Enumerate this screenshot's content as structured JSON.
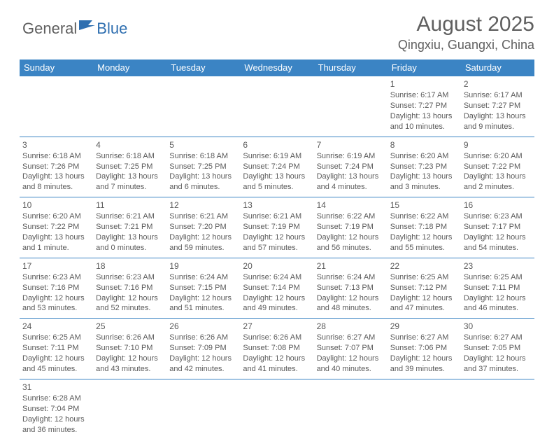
{
  "logo": {
    "text1": "General",
    "text2": "Blue"
  },
  "header": {
    "title": "August 2025",
    "location": "Qingxiu, Guangxi, China"
  },
  "colors": {
    "headerBg": "#3b84c4",
    "headerText": "#ffffff",
    "border": "#3b84c4",
    "text": "#5a5a5a"
  },
  "dayNames": [
    "Sunday",
    "Monday",
    "Tuesday",
    "Wednesday",
    "Thursday",
    "Friday",
    "Saturday"
  ],
  "weeks": [
    [
      null,
      null,
      null,
      null,
      null,
      {
        "n": "1",
        "sr": "Sunrise: 6:17 AM",
        "ss": "Sunset: 7:27 PM",
        "dl": "Daylight: 13 hours and 10 minutes."
      },
      {
        "n": "2",
        "sr": "Sunrise: 6:17 AM",
        "ss": "Sunset: 7:27 PM",
        "dl": "Daylight: 13 hours and 9 minutes."
      }
    ],
    [
      {
        "n": "3",
        "sr": "Sunrise: 6:18 AM",
        "ss": "Sunset: 7:26 PM",
        "dl": "Daylight: 13 hours and 8 minutes."
      },
      {
        "n": "4",
        "sr": "Sunrise: 6:18 AM",
        "ss": "Sunset: 7:25 PM",
        "dl": "Daylight: 13 hours and 7 minutes."
      },
      {
        "n": "5",
        "sr": "Sunrise: 6:18 AM",
        "ss": "Sunset: 7:25 PM",
        "dl": "Daylight: 13 hours and 6 minutes."
      },
      {
        "n": "6",
        "sr": "Sunrise: 6:19 AM",
        "ss": "Sunset: 7:24 PM",
        "dl": "Daylight: 13 hours and 5 minutes."
      },
      {
        "n": "7",
        "sr": "Sunrise: 6:19 AM",
        "ss": "Sunset: 7:24 PM",
        "dl": "Daylight: 13 hours and 4 minutes."
      },
      {
        "n": "8",
        "sr": "Sunrise: 6:20 AM",
        "ss": "Sunset: 7:23 PM",
        "dl": "Daylight: 13 hours and 3 minutes."
      },
      {
        "n": "9",
        "sr": "Sunrise: 6:20 AM",
        "ss": "Sunset: 7:22 PM",
        "dl": "Daylight: 13 hours and 2 minutes."
      }
    ],
    [
      {
        "n": "10",
        "sr": "Sunrise: 6:20 AM",
        "ss": "Sunset: 7:22 PM",
        "dl": "Daylight: 13 hours and 1 minute."
      },
      {
        "n": "11",
        "sr": "Sunrise: 6:21 AM",
        "ss": "Sunset: 7:21 PM",
        "dl": "Daylight: 13 hours and 0 minutes."
      },
      {
        "n": "12",
        "sr": "Sunrise: 6:21 AM",
        "ss": "Sunset: 7:20 PM",
        "dl": "Daylight: 12 hours and 59 minutes."
      },
      {
        "n": "13",
        "sr": "Sunrise: 6:21 AM",
        "ss": "Sunset: 7:19 PM",
        "dl": "Daylight: 12 hours and 57 minutes."
      },
      {
        "n": "14",
        "sr": "Sunrise: 6:22 AM",
        "ss": "Sunset: 7:19 PM",
        "dl": "Daylight: 12 hours and 56 minutes."
      },
      {
        "n": "15",
        "sr": "Sunrise: 6:22 AM",
        "ss": "Sunset: 7:18 PM",
        "dl": "Daylight: 12 hours and 55 minutes."
      },
      {
        "n": "16",
        "sr": "Sunrise: 6:23 AM",
        "ss": "Sunset: 7:17 PM",
        "dl": "Daylight: 12 hours and 54 minutes."
      }
    ],
    [
      {
        "n": "17",
        "sr": "Sunrise: 6:23 AM",
        "ss": "Sunset: 7:16 PM",
        "dl": "Daylight: 12 hours and 53 minutes."
      },
      {
        "n": "18",
        "sr": "Sunrise: 6:23 AM",
        "ss": "Sunset: 7:16 PM",
        "dl": "Daylight: 12 hours and 52 minutes."
      },
      {
        "n": "19",
        "sr": "Sunrise: 6:24 AM",
        "ss": "Sunset: 7:15 PM",
        "dl": "Daylight: 12 hours and 51 minutes."
      },
      {
        "n": "20",
        "sr": "Sunrise: 6:24 AM",
        "ss": "Sunset: 7:14 PM",
        "dl": "Daylight: 12 hours and 49 minutes."
      },
      {
        "n": "21",
        "sr": "Sunrise: 6:24 AM",
        "ss": "Sunset: 7:13 PM",
        "dl": "Daylight: 12 hours and 48 minutes."
      },
      {
        "n": "22",
        "sr": "Sunrise: 6:25 AM",
        "ss": "Sunset: 7:12 PM",
        "dl": "Daylight: 12 hours and 47 minutes."
      },
      {
        "n": "23",
        "sr": "Sunrise: 6:25 AM",
        "ss": "Sunset: 7:11 PM",
        "dl": "Daylight: 12 hours and 46 minutes."
      }
    ],
    [
      {
        "n": "24",
        "sr": "Sunrise: 6:25 AM",
        "ss": "Sunset: 7:11 PM",
        "dl": "Daylight: 12 hours and 45 minutes."
      },
      {
        "n": "25",
        "sr": "Sunrise: 6:26 AM",
        "ss": "Sunset: 7:10 PM",
        "dl": "Daylight: 12 hours and 43 minutes."
      },
      {
        "n": "26",
        "sr": "Sunrise: 6:26 AM",
        "ss": "Sunset: 7:09 PM",
        "dl": "Daylight: 12 hours and 42 minutes."
      },
      {
        "n": "27",
        "sr": "Sunrise: 6:26 AM",
        "ss": "Sunset: 7:08 PM",
        "dl": "Daylight: 12 hours and 41 minutes."
      },
      {
        "n": "28",
        "sr": "Sunrise: 6:27 AM",
        "ss": "Sunset: 7:07 PM",
        "dl": "Daylight: 12 hours and 40 minutes."
      },
      {
        "n": "29",
        "sr": "Sunrise: 6:27 AM",
        "ss": "Sunset: 7:06 PM",
        "dl": "Daylight: 12 hours and 39 minutes."
      },
      {
        "n": "30",
        "sr": "Sunrise: 6:27 AM",
        "ss": "Sunset: 7:05 PM",
        "dl": "Daylight: 12 hours and 37 minutes."
      }
    ],
    [
      {
        "n": "31",
        "sr": "Sunrise: 6:28 AM",
        "ss": "Sunset: 7:04 PM",
        "dl": "Daylight: 12 hours and 36 minutes."
      },
      null,
      null,
      null,
      null,
      null,
      null
    ]
  ]
}
